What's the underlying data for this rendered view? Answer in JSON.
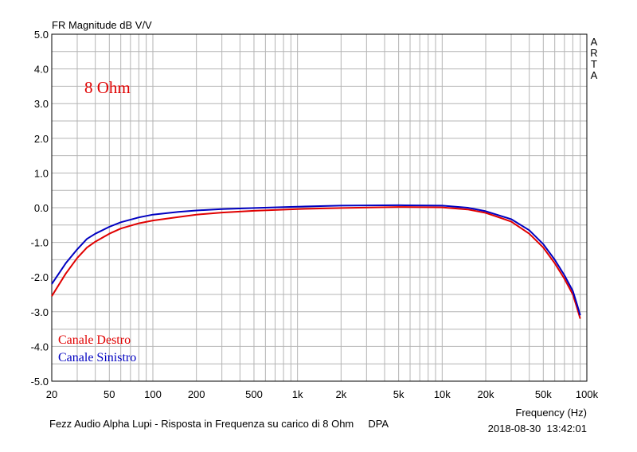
{
  "chart_data": {
    "type": "line",
    "title": "FR Magnitude dB V/V",
    "xlabel": "Frequency (Hz)",
    "ylabel": "",
    "x_scale": "log",
    "xlim": [
      20,
      100000
    ],
    "ylim": [
      -5,
      5
    ],
    "grid": true,
    "y_ticks": [
      "5.0",
      "4.0",
      "3.0",
      "2.0",
      "1.0",
      "0.0",
      "-1.0",
      "-2.0",
      "-3.0",
      "-4.0",
      "-5.0"
    ],
    "y_tick_values": [
      5,
      4,
      3,
      2,
      1,
      0,
      -1,
      -2,
      -3,
      -4,
      -5
    ],
    "x_ticks": [
      "20",
      "50",
      "100",
      "200",
      "500",
      "1k",
      "2k",
      "5k",
      "10k",
      "20k",
      "50k",
      "100k"
    ],
    "x_tick_values": [
      20,
      50,
      100,
      200,
      500,
      1000,
      2000,
      5000,
      10000,
      20000,
      50000,
      100000
    ],
    "annotation": "8 Ohm",
    "brand": "ARTA",
    "footer_left": "Fezz Audio Alpha Lupi - Risposta in Frequenza su carico di 8 Ohm     DPA",
    "timestamp": "2018-08-30  13:42:01",
    "legend_position": "bottom-left",
    "series": [
      {
        "name": "Canale Destro",
        "color": "#e00000",
        "x": [
          20,
          25,
          30,
          35,
          40,
          50,
          60,
          80,
          100,
          150,
          200,
          300,
          500,
          1000,
          2000,
          5000,
          10000,
          15000,
          20000,
          30000,
          40000,
          50000,
          60000,
          70000,
          80000,
          85000,
          90000
        ],
        "y": [
          -2.55,
          -1.9,
          -1.45,
          -1.15,
          -0.98,
          -0.75,
          -0.6,
          -0.45,
          -0.37,
          -0.27,
          -0.2,
          -0.14,
          -0.09,
          -0.04,
          -0.01,
          0.02,
          0.01,
          -0.05,
          -0.15,
          -0.4,
          -0.75,
          -1.15,
          -1.6,
          -2.05,
          -2.5,
          -2.85,
          -3.2
        ]
      },
      {
        "name": "Canale Sinistro",
        "color": "#0000c0",
        "x": [
          20,
          25,
          30,
          35,
          40,
          50,
          60,
          80,
          100,
          150,
          200,
          300,
          500,
          1000,
          2000,
          5000,
          10000,
          15000,
          20000,
          30000,
          40000,
          50000,
          60000,
          70000,
          80000,
          85000,
          90000
        ],
        "y": [
          -2.2,
          -1.6,
          -1.2,
          -0.9,
          -0.75,
          -0.55,
          -0.42,
          -0.28,
          -0.2,
          -0.12,
          -0.08,
          -0.04,
          -0.01,
          0.03,
          0.06,
          0.07,
          0.06,
          0.0,
          -0.1,
          -0.33,
          -0.65,
          -1.05,
          -1.5,
          -1.95,
          -2.4,
          -2.75,
          -3.1
        ]
      }
    ]
  }
}
